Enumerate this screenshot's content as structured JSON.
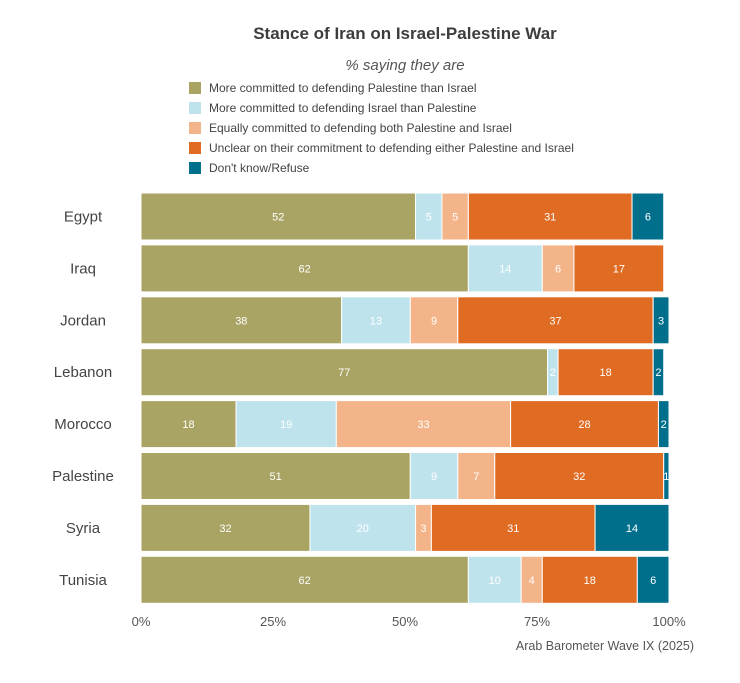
{
  "chart_data": {
    "type": "bar",
    "orientation": "horizontal",
    "stacked": true,
    "title": "Stance of Iran on Israel-Palestine War",
    "subtitle": "% saying they are",
    "categories": [
      "Egypt",
      "Iraq",
      "Jordan",
      "Lebanon",
      "Morocco",
      "Palestine",
      "Syria",
      "Tunisia"
    ],
    "series": [
      {
        "name": "More committed to defending Palestine than Israel",
        "color": "#a9a464",
        "label_color": "#ffffff",
        "values": [
          52,
          62,
          38,
          77,
          18,
          51,
          32,
          62
        ]
      },
      {
        "name": "More committed to defending Israel than Palestine",
        "color": "#bfe3ec",
        "label_color": "#ffffff",
        "values": [
          5,
          14,
          13,
          2,
          19,
          9,
          20,
          10
        ]
      },
      {
        "name": "Equally committed to defending both Palestine and Israel",
        "color": "#f4b48a",
        "label_color": "#ffffff",
        "values": [
          5,
          6,
          9,
          0,
          33,
          7,
          3,
          4
        ]
      },
      {
        "name": "Unclear on their commitment to defending either Palestine and Israel",
        "color": "#e06b22",
        "label_color": "#ffffff",
        "values": [
          31,
          17,
          37,
          18,
          28,
          32,
          31,
          18
        ]
      },
      {
        "name": "Don't know/Refuse",
        "color": "#006f8c",
        "label_color": "#ffffff",
        "values": [
          6,
          0,
          3,
          2,
          2,
          1,
          14,
          6
        ]
      }
    ],
    "xlim": [
      0,
      100
    ],
    "x_ticks": [
      "0%",
      "25%",
      "50%",
      "75%",
      "100%"
    ],
    "x_tick_values": [
      0,
      25,
      50,
      75,
      100
    ],
    "grid": false,
    "legend_position": "top"
  },
  "source": "Arab Barometer Wave IX (2025)"
}
